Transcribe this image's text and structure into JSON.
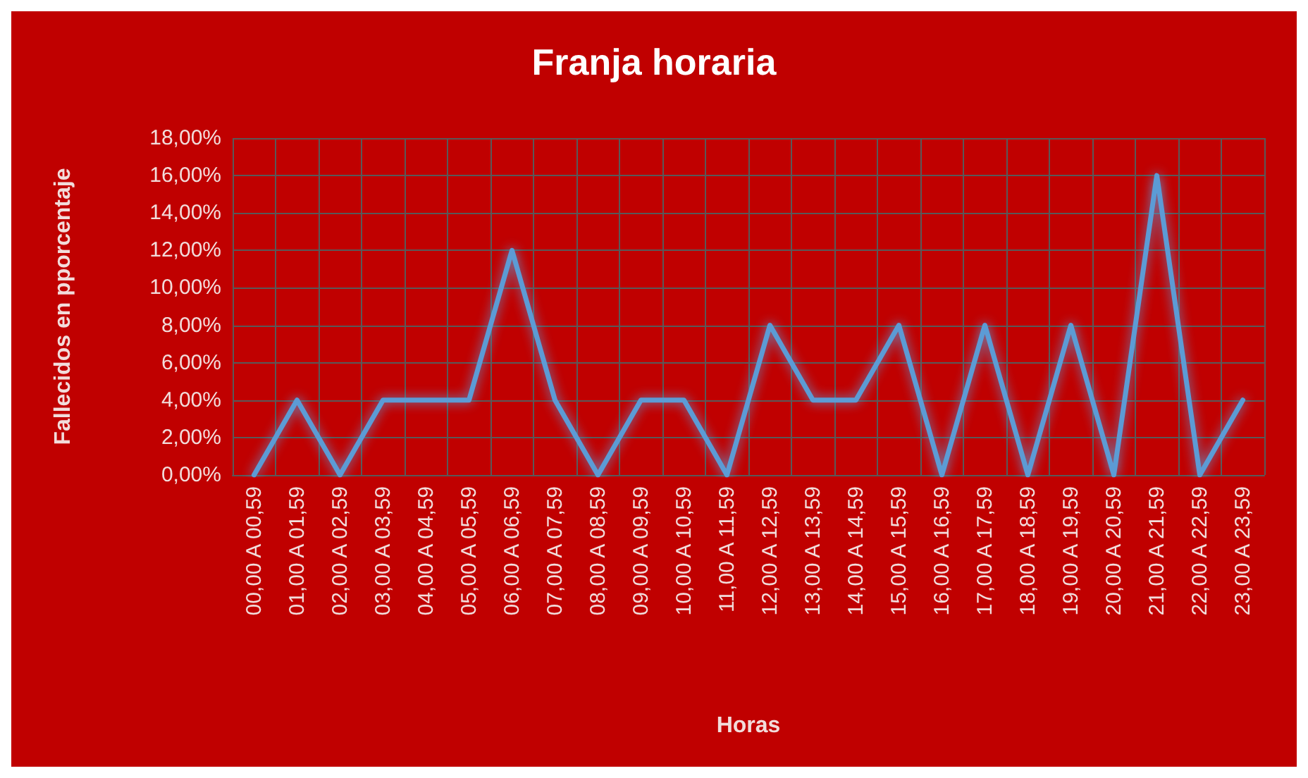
{
  "chart_data": {
    "type": "line",
    "title": "Franja horaria",
    "xlabel": "Horas",
    "ylabel": "Fallecidos en pporcentaje",
    "categories": [
      "00,00 A 00,59",
      "01,00 A 01,59",
      "02,00 A 02,59",
      "03,00 A 03,59",
      "04,00 A 04,59",
      "05,00 A 05,59",
      "06,00 A 06,59",
      "07,00 A 07,59",
      "08,00 A 08,59",
      "09,00 A 09,59",
      "10,00 A 10,59",
      "11,00 A 11,59",
      "12,00 A 12,59",
      "13,00 A 13,59",
      "14,00 A 14,59",
      "15,00 A 15,59",
      "16,00 A 16,59",
      "17,00 A 17,59",
      "18,00 A 18,59",
      "19,00 A 19,59",
      "20,00 A 20,59",
      "21,00 A 21,59",
      "22,00 A 22,59",
      "23,00 A 23,59"
    ],
    "series": [
      {
        "color": "#5b9bd5",
        "values": [
          0,
          4,
          0,
          4,
          4,
          4,
          12,
          4,
          0,
          4,
          4,
          0,
          8,
          4,
          4,
          8,
          0,
          8,
          0,
          8,
          0,
          16,
          0,
          4
        ]
      }
    ],
    "ylim": [
      0,
      18
    ],
    "yticks": [
      {
        "value": 0,
        "label": "0,00%"
      },
      {
        "value": 2,
        "label": "2,00%"
      },
      {
        "value": 4,
        "label": "4,00%"
      },
      {
        "value": 6,
        "label": "6,00%"
      },
      {
        "value": 8,
        "label": "8,00%"
      },
      {
        "value": 10,
        "label": "10,00%"
      },
      {
        "value": 12,
        "label": "12,00%"
      },
      {
        "value": 14,
        "label": "14,00%"
      },
      {
        "value": 16,
        "label": "16,00%"
      },
      {
        "value": 18,
        "label": "18,00%"
      }
    ],
    "grid": true,
    "marker": "none",
    "line_style": "solid"
  }
}
